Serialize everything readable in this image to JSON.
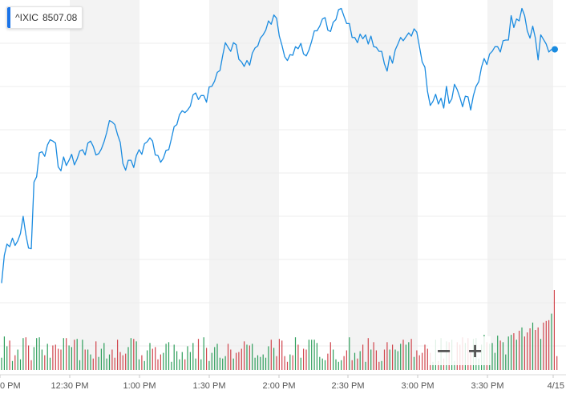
{
  "ticker": {
    "symbol": "^IXIC",
    "price": "8507.08",
    "accent_color": "#1a73e8"
  },
  "zoom": {
    "minus_label": "−",
    "plus_label": "+"
  },
  "colors": {
    "line": "#1a8be0",
    "volume_up": "#2e9e5b",
    "volume_down": "#d0454c",
    "band": "#f3f3f3"
  },
  "chart_data": {
    "type": "line",
    "title": "",
    "xlabel": "",
    "ylabel": "",
    "x_ticks": [
      "0 PM",
      "12:30 PM",
      "1:00 PM",
      "1:30 PM",
      "2:00 PM",
      "2:30 PM",
      "3:00 PM",
      "3:30 PM",
      "4/15"
    ],
    "grid": true,
    "y_grid_lines": 8,
    "alternating_time_bands": true,
    "last_point_marker": true,
    "series": [
      {
        "values": [
          8472.1,
          8476.3,
          8478.0,
          8477.6,
          8478.9,
          8477.8,
          8478.5,
          8479.6,
          8482.2,
          8479.4,
          8477.4,
          8477.3,
          8487.4,
          8488.2,
          8491.8,
          8492.0,
          8491.3,
          8493.0,
          8493.8,
          8493.6,
          8493.3,
          8489.7,
          8489.1,
          8491.2,
          8489.9,
          8490.7,
          8491.6,
          8490.0,
          8490.9,
          8492.1,
          8492.3,
          8491.5,
          8493.3,
          8493.6,
          8492.8,
          8491.5,
          8491.7,
          8492.4,
          8493.5,
          8494.9,
          8496.7,
          8496.5,
          8496.1,
          8494.6,
          8493.4,
          8490.2,
          8489.2,
          8490.7,
          8490.7,
          8489.6,
          8491.4,
          8492.3,
          8491.6,
          8493.2,
          8493.5,
          8494.1,
          8493.6,
          8491.5,
          8491.4,
          8490.4,
          8491.0,
          8492.2,
          8492.3,
          8494.0,
          8495.8,
          8496.1,
          8497.6,
          8498.2,
          8497.9,
          8498.3,
          8498.9,
          8500.6,
          8500.9,
          8499.9,
          8500.5,
          8500.5,
          8499.5,
          8501.8,
          8501.9,
          8502.7,
          8504.0,
          8504.3,
          8506.5,
          8508.5,
          8507.8,
          8507.2,
          8508.5,
          8508.2,
          8506.0,
          8505.6,
          8504.9,
          8505.8,
          8505.1,
          8506.9,
          8507.7,
          8508.0,
          8509.2,
          8509.7,
          8510.4,
          8511.8,
          8511.3,
          8512.7,
          8512.2,
          8509.5,
          8508.1,
          8506.4,
          8505.8,
          8506.7,
          8506.6,
          8507.9,
          8507.6,
          8508.4,
          8506.8,
          8506.5,
          8507.4,
          8508.7,
          8510.3,
          8510.3,
          8511.0,
          8512.1,
          8512.3,
          8510.4,
          8510.2,
          8511.6,
          8512.0,
          8513.5,
          8513.7,
          8512.5,
          8511.4,
          8511.4,
          8509.3,
          8509.3,
          8508.5,
          8509.8,
          8509.1,
          8509.7,
          8508.3,
          8509.5,
          8507.9,
          8507.8,
          8507.2,
          8507.2,
          8505.3,
          8504.2,
          8506.5,
          8505.4,
          8507.4,
          8508.3,
          8509.3,
          8508.8,
          8509.4,
          8510.0,
          8509.5,
          8510.6,
          8510.1,
          8507.9,
          8505.6,
          8504.8,
          8501.1,
          8499.0,
          8499.6,
          8500.7,
          8499.2,
          8500.1,
          8498.6,
          8501.9,
          8499.3,
          8500.0,
          8502.2,
          8501.4,
          8500.2,
          8498.8,
          8500.4,
          8500.3,
          8498.3,
          8500.5,
          8501.9,
          8502.6,
          8504.8,
          8506.1,
          8505.2,
          8506.8,
          8507.2,
          8507.9,
          8507.9,
          8507.1,
          8508.8,
          8508.9,
          8508.9,
          8512.6,
          8510.8,
          8512.1,
          8511.8,
          8513.7,
          8512.6,
          8510.3,
          8509.2,
          8511.0,
          8509.2,
          8505.9,
          8509.7,
          8509.0,
          8508.3,
          8507.1,
          8507.5
        ]
      }
    ],
    "volume": {
      "values": [
        15,
        41,
        29,
        36,
        11,
        18,
        25,
        13,
        39,
        40,
        30,
        12,
        28,
        39,
        40,
        25,
        18,
        32,
        15,
        30,
        31,
        26,
        25,
        39,
        39,
        30,
        28,
        37,
        38,
        12,
        37,
        25,
        25,
        19,
        14,
        35,
        16,
        26,
        33,
        14,
        19,
        25,
        15,
        37,
        22,
        18,
        20,
        28,
        39,
        38,
        35,
        13,
        18,
        11,
        24,
        33,
        26,
        28,
        13,
        19,
        21,
        32,
        34,
        10,
        31,
        23,
        13,
        22,
        13,
        29,
        22,
        33,
        14,
        38,
        13,
        40,
        27,
        11,
        21,
        28,
        32,
        15,
        14,
        17,
        32,
        25,
        14,
        21,
        22,
        26,
        35,
        31,
        30,
        32,
        15,
        18,
        16,
        19,
        15,
        29,
        37,
        27,
        17,
        38,
        36,
        17,
        10,
        19,
        18,
        40,
        31,
        15,
        26,
        25,
        37,
        37,
        37,
        33,
        16,
        14,
        12,
        20,
        34,
        25,
        13,
        10,
        12,
        17,
        24,
        40,
        12,
        21,
        14,
        23,
        31,
        10,
        39,
        25,
        34,
        24,
        10,
        11,
        25,
        34,
        25,
        31,
        25,
        23,
        32,
        37,
        31,
        34,
        38,
        16,
        24,
        18,
        21,
        31,
        26,
        21,
        10,
        37,
        11,
        39,
        14,
        35,
        34,
        37,
        11,
        34,
        31,
        40,
        33,
        39,
        24,
        38,
        39,
        14,
        31,
        43,
        34,
        32,
        33,
        21,
        42,
        36,
        34,
        19,
        41,
        43,
        45,
        37,
        48,
        52,
        41,
        46,
        51,
        58,
        49,
        52,
        38,
        58,
        60,
        61,
        69,
        98,
        17
      ]
    }
  }
}
